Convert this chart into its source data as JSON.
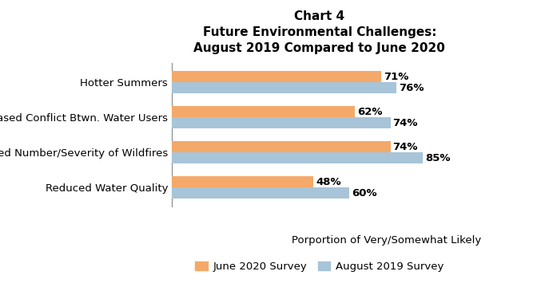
{
  "title_line1": "Chart 4",
  "title_line2": "Future Environmental Challenges:",
  "title_line3": "August 2019 Compared to June 2020",
  "categories": [
    "Hotter Summers",
    "Increased Conflict Btwn. Water Users",
    "Increased Number/Severity of Wildfires",
    "Reduced Water Quality"
  ],
  "june2020_values": [
    71,
    62,
    74,
    48
  ],
  "aug2019_values": [
    76,
    74,
    85,
    60
  ],
  "june2020_color": "#F4A96A",
  "aug2019_color": "#A8C4D8",
  "xlabel": "Porportion of Very/Somewhat Likely",
  "legend_labels": [
    "June 2020 Survey",
    "August 2019 Survey"
  ],
  "bar_height": 0.32,
  "xlim": [
    0,
    100
  ],
  "value_fontsize": 9.5,
  "label_fontsize": 9.5,
  "title_fontsize": 11
}
